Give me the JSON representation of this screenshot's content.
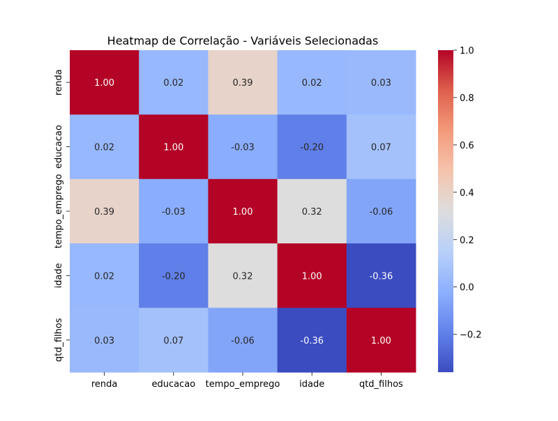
{
  "chart_data": {
    "type": "heatmap",
    "title": "Heatmap de Correlação - Variáveis Selecionadas",
    "x_categories": [
      "renda",
      "educacao",
      "tempo_emprego",
      "idade",
      "qtd_filhos"
    ],
    "y_categories": [
      "renda",
      "educacao",
      "tempo_emprego",
      "idade",
      "qtd_filhos"
    ],
    "values": [
      [
        1.0,
        0.02,
        0.39,
        0.02,
        0.03
      ],
      [
        0.02,
        1.0,
        -0.03,
        -0.2,
        0.07
      ],
      [
        0.39,
        -0.03,
        1.0,
        0.32,
        -0.06
      ],
      [
        0.02,
        -0.2,
        0.32,
        1.0,
        -0.36
      ],
      [
        0.03,
        0.07,
        -0.06,
        -0.36,
        1.0
      ]
    ],
    "annotation_format": "0.00",
    "colormap": "coolwarm",
    "colorbar": {
      "vmin": -0.36,
      "vmax": 1.0,
      "ticks": [
        -0.2,
        0.0,
        0.2,
        0.4,
        0.6,
        0.8,
        1.0
      ],
      "tick_labels": [
        "−0.2",
        "0.0",
        "0.2",
        "0.4",
        "0.6",
        "0.8",
        "1.0"
      ]
    }
  }
}
